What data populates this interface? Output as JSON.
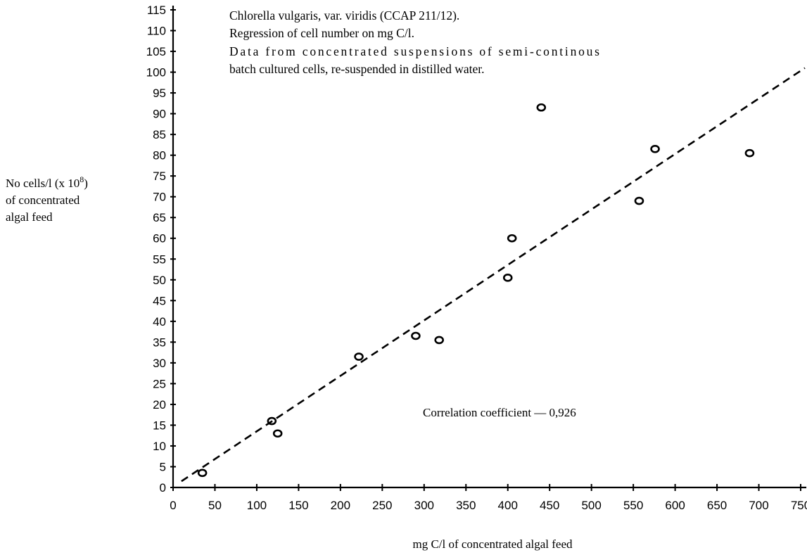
{
  "chart_data": {
    "type": "scatter",
    "title_lines": [
      "Chlorella vulgaris, var. viridis (CCAP 211/12).",
      "Regression of cell number on mg C/l.",
      "Data from concentrated suspensions of semi-continous",
      "batch cultured cells, re-suspended in distilled water."
    ],
    "ylabel_lines": [
      "No cells/l (x 10",
      "of concentrated",
      "algal feed"
    ],
    "ylabel_superscript": "8",
    "ylabel_suffix": ")",
    "xlabel": "mg C/l of concentrated algal feed",
    "annotation": "Correlation coefficient — 0,926",
    "xlim": [
      0,
      750
    ],
    "ylim": [
      0,
      115
    ],
    "x_ticks": [
      0,
      50,
      100,
      150,
      200,
      250,
      300,
      350,
      400,
      450,
      500,
      550,
      600,
      650,
      700,
      750
    ],
    "y_ticks": [
      0,
      5,
      10,
      15,
      20,
      25,
      30,
      35,
      40,
      45,
      50,
      55,
      60,
      65,
      70,
      75,
      80,
      85,
      90,
      95,
      100,
      105,
      110,
      115
    ],
    "grid": false,
    "points": [
      {
        "x": 35,
        "y": 3.5
      },
      {
        "x": 118,
        "y": 16
      },
      {
        "x": 125,
        "y": 13
      },
      {
        "x": 222,
        "y": 31.5
      },
      {
        "x": 290,
        "y": 36.5
      },
      {
        "x": 318,
        "y": 35.5
      },
      {
        "x": 400,
        "y": 50.5
      },
      {
        "x": 405,
        "y": 60
      },
      {
        "x": 440,
        "y": 91.5
      },
      {
        "x": 557,
        "y": 69
      },
      {
        "x": 576,
        "y": 81.5
      },
      {
        "x": 689,
        "y": 80.5
      }
    ],
    "regression_line": {
      "x_start": 10,
      "y_start": 1.5,
      "x_end": 755,
      "y_end": 101
    }
  }
}
